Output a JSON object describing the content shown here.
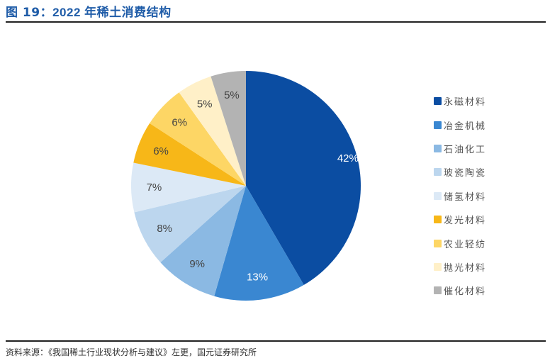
{
  "header": {
    "figure_prefix": "图 19：",
    "title": "2022 年稀土消费结构"
  },
  "source": "资料来源：《我国稀土行业现状分析与建议》左更，国元证券研究所",
  "chart_data": {
    "type": "pie",
    "title": "2022 年稀土消费结构",
    "start_angle_deg": 0,
    "direction": "clockwise",
    "legend_position": "right",
    "categories": [
      "永磁材料",
      "冶金机械",
      "石油化工",
      "玻瓷陶瓷",
      "储氢材料",
      "发光材料",
      "农业轻纺",
      "抛光材料",
      "催化材料"
    ],
    "values": [
      42,
      13,
      9,
      8,
      7,
      6,
      6,
      5,
      5
    ],
    "labels": [
      "42%",
      "13%",
      "9%",
      "8%",
      "7%",
      "6%",
      "6%",
      "5%",
      "5%"
    ],
    "colors": [
      "#0b4da2",
      "#3a87d1",
      "#8bb9e3",
      "#bcd6ee",
      "#dce9f6",
      "#f7b718",
      "#fdd665",
      "#fff0c8",
      "#b3b3b3"
    ],
    "label_colors": [
      "#ffffff",
      "#ffffff",
      "#444444",
      "#444444",
      "#444444",
      "#444444",
      "#444444",
      "#444444",
      "#444444"
    ]
  }
}
